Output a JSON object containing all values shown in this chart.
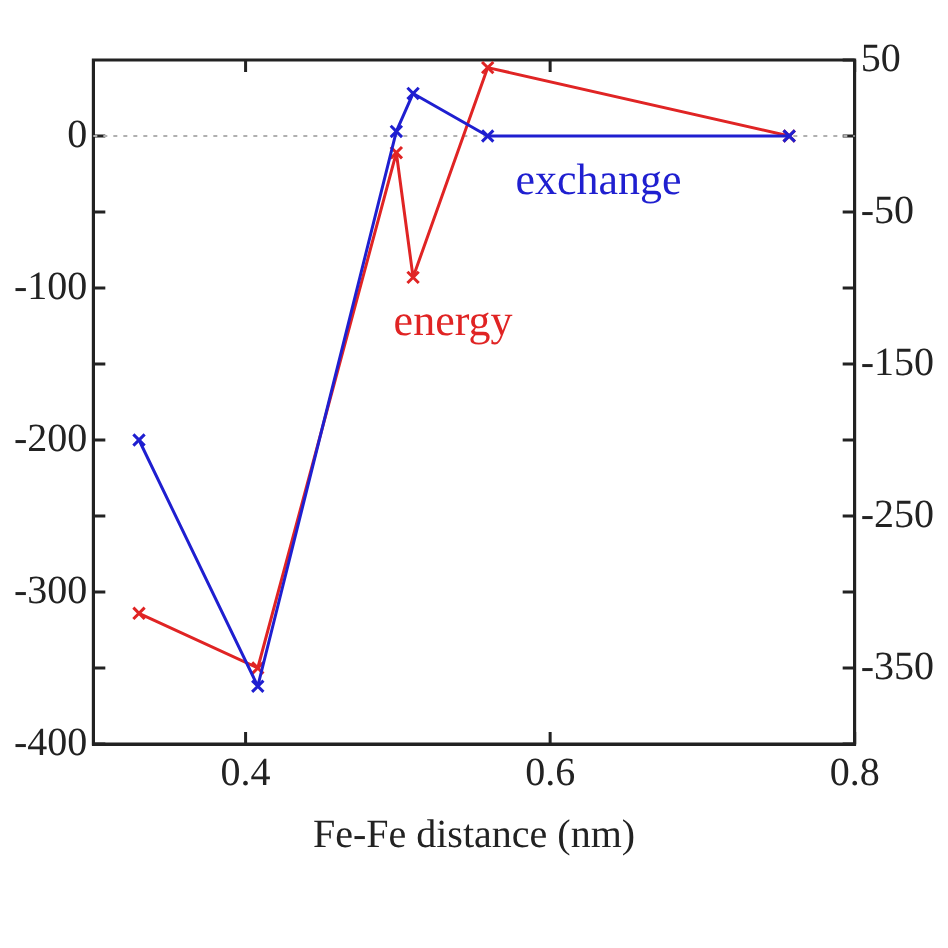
{
  "chart_data": {
    "type": "line",
    "xlabel": "Fe-Fe distance (nm)",
    "xlim": [
      0.3,
      0.8
    ],
    "xticks": [
      0.4,
      0.6,
      0.8
    ],
    "ylim": [
      -400,
      50
    ],
    "yticks": [
      0,
      {
        "value": -50,
        "label": null
      },
      -100,
      {
        "value": -150,
        "label": null
      },
      -200,
      {
        "value": -250,
        "label": null
      },
      -300,
      {
        "value": -350,
        "label": null
      },
      -400
    ],
    "y2lim": [
      -400,
      50
    ],
    "y2ticks": [
      50,
      {
        "value": 0,
        "label": null
      },
      -50,
      {
        "value": -100,
        "label": null
      },
      -150,
      {
        "value": -200,
        "label": null
      },
      -250,
      {
        "value": -300,
        "label": null
      },
      -350,
      {
        "value": -400,
        "label": null
      }
    ],
    "series": [
      {
        "name": "exchange",
        "color": "#1f1fd0",
        "x": [
          0.33,
          0.408,
          0.499,
          0.51,
          0.559,
          0.757
        ],
        "values": [
          -200,
          -362,
          3,
          28,
          0,
          0
        ]
      },
      {
        "name": "energy",
        "color": "#e02424",
        "x": [
          0.33,
          0.408,
          0.499,
          0.51,
          0.559,
          0.757
        ],
        "values": [
          -314,
          -350,
          -11,
          -93,
          45,
          0
        ]
      }
    ],
    "ref_lines": [
      {
        "axis": "y",
        "value": 0,
        "color": "#b0b0b0",
        "line_style": "dotted"
      }
    ],
    "marker": "cross",
    "grid": false,
    "legend": false,
    "line_style": "solid"
  }
}
